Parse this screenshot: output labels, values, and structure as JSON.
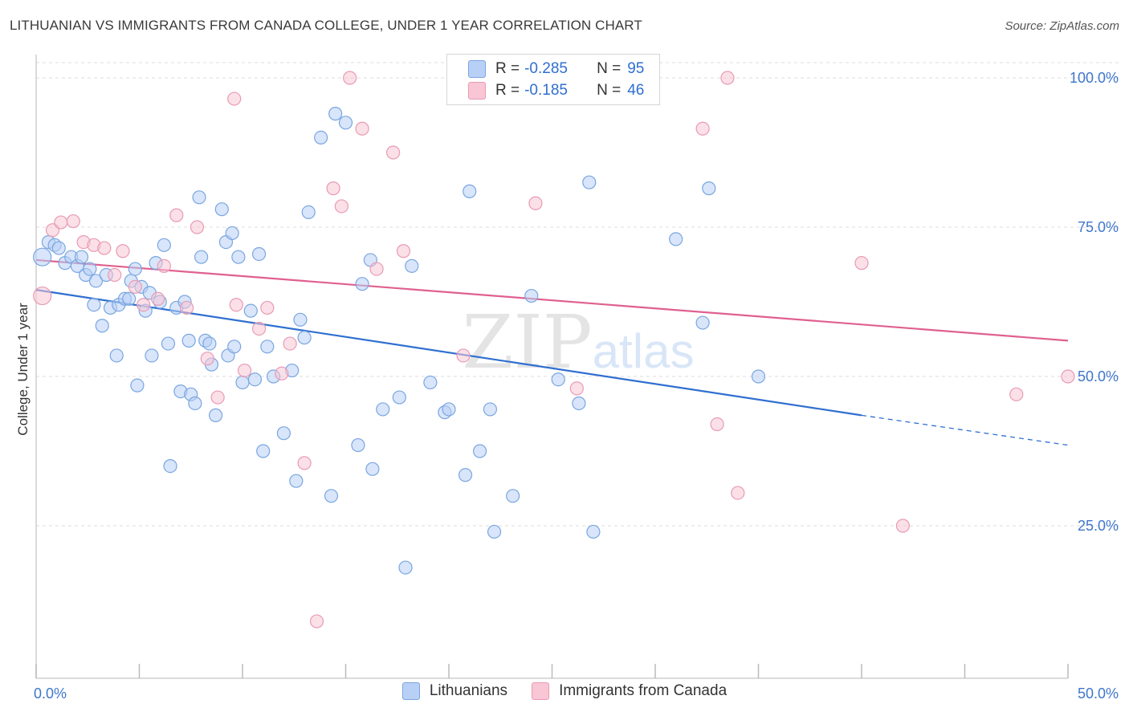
{
  "header": {
    "title": "LITHUANIAN VS IMMIGRANTS FROM CANADA COLLEGE, UNDER 1 YEAR CORRELATION CHART",
    "source": "Source: ZipAtlas.com"
  },
  "legend_top": [
    {
      "r_label": "R =",
      "r_value": "-0.285",
      "n_label": "N =",
      "n_value": "95"
    },
    {
      "r_label": "R =",
      "r_value": "-0.185",
      "n_label": "N =",
      "n_value": "46"
    }
  ],
  "legend_bottom": [
    {
      "label": "Lithuanians"
    },
    {
      "label": "Immigrants from Canada"
    }
  ],
  "colors": {
    "blue_fill": "#b8d0f5",
    "blue_stroke": "#7aa6e0",
    "blue_line": "#2f6fd0",
    "pink_fill": "#f8c6d5",
    "pink_stroke": "#e89bb4",
    "pink_line": "#e0608f",
    "axis_text": "#3f76cc",
    "grid": "#dddddd"
  },
  "chart_data": {
    "type": "scatter",
    "title": "LITHUANIAN VS IMMIGRANTS FROM CANADA COLLEGE, UNDER 1 YEAR CORRELATION CHART",
    "xlabel": "",
    "ylabel": "College, Under 1 year",
    "xlim": [
      0,
      50
    ],
    "ylim": [
      0,
      105
    ],
    "x_tick_labels": [
      "0.0%",
      "50.0%"
    ],
    "y_ticks": [
      25,
      50,
      75,
      100
    ],
    "y_tick_labels": [
      "25.0%",
      "50.0%",
      "75.0%",
      "100.0%"
    ],
    "grid": true,
    "watermark": "ZIPatlas",
    "series": [
      {
        "name": "Lithuanians",
        "color": "#b8d0f5",
        "trend": {
          "x": [
            0,
            40
          ],
          "y": [
            64.5,
            43.5
          ],
          "dash_to": [
            50,
            38.5
          ]
        },
        "points": [
          [
            0.3,
            70
          ],
          [
            0.6,
            72.5
          ],
          [
            0.9,
            72
          ],
          [
            1.1,
            71.5
          ],
          [
            1.4,
            69
          ],
          [
            1.7,
            70
          ],
          [
            2.0,
            68.5
          ],
          [
            2.2,
            70
          ],
          [
            2.4,
            67
          ],
          [
            2.6,
            68
          ],
          [
            2.9,
            66
          ],
          [
            2.8,
            62
          ],
          [
            3.2,
            58.5
          ],
          [
            3.4,
            67
          ],
          [
            3.6,
            61.5
          ],
          [
            3.9,
            53.5
          ],
          [
            4.0,
            62
          ],
          [
            4.3,
            63
          ],
          [
            4.5,
            63
          ],
          [
            4.6,
            66
          ],
          [
            4.8,
            68
          ],
          [
            4.9,
            48.5
          ],
          [
            5.1,
            65
          ],
          [
            5.3,
            61
          ],
          [
            5.5,
            64
          ],
          [
            5.6,
            53.5
          ],
          [
            5.8,
            69
          ],
          [
            6.0,
            62.5
          ],
          [
            6.2,
            72
          ],
          [
            6.4,
            55.5
          ],
          [
            6.5,
            35
          ],
          [
            6.8,
            61.5
          ],
          [
            7.0,
            47.5
          ],
          [
            7.2,
            62.5
          ],
          [
            7.4,
            56
          ],
          [
            7.5,
            47
          ],
          [
            7.7,
            45.5
          ],
          [
            7.9,
            80
          ],
          [
            8.0,
            70
          ],
          [
            8.2,
            56
          ],
          [
            8.4,
            55.5
          ],
          [
            8.5,
            52
          ],
          [
            8.7,
            43.5
          ],
          [
            9.0,
            78
          ],
          [
            9.2,
            72.5
          ],
          [
            9.3,
            53.5
          ],
          [
            9.5,
            74
          ],
          [
            9.8,
            70
          ],
          [
            9.6,
            55
          ],
          [
            10.0,
            49
          ],
          [
            10.4,
            61
          ],
          [
            10.8,
            70.5
          ],
          [
            10.6,
            49.5
          ],
          [
            11.0,
            37.5
          ],
          [
            11.2,
            55
          ],
          [
            11.5,
            50
          ],
          [
            12.0,
            40.5
          ],
          [
            12.4,
            51
          ],
          [
            12.6,
            32.5
          ],
          [
            12.8,
            59.5
          ],
          [
            13.0,
            56.5
          ],
          [
            13.2,
            77.5
          ],
          [
            13.8,
            90
          ],
          [
            14.5,
            94
          ],
          [
            15.0,
            92.5
          ],
          [
            14.3,
            30
          ],
          [
            15.6,
            38.5
          ],
          [
            15.8,
            65.5
          ],
          [
            16.2,
            69.5
          ],
          [
            16.3,
            34.5
          ],
          [
            16.8,
            44.5
          ],
          [
            17.6,
            46.5
          ],
          [
            17.9,
            18
          ],
          [
            18.2,
            68.5
          ],
          [
            19.1,
            49
          ],
          [
            19.8,
            44
          ],
          [
            20.0,
            44.5
          ],
          [
            20.8,
            33.5
          ],
          [
            21.0,
            81
          ],
          [
            21.5,
            37.5
          ],
          [
            22.0,
            44.5
          ],
          [
            22.2,
            24
          ],
          [
            23.1,
            30
          ],
          [
            24.0,
            63.5
          ],
          [
            25.3,
            49.5
          ],
          [
            26.3,
            45.5
          ],
          [
            26.8,
            82.5
          ],
          [
            27.0,
            24
          ],
          [
            31.0,
            73
          ],
          [
            32.3,
            59
          ],
          [
            32.6,
            81.5
          ],
          [
            35.0,
            50
          ]
        ]
      },
      {
        "name": "Immigrants from Canada",
        "color": "#f8c6d5",
        "trend": {
          "x": [
            0,
            50
          ],
          "y": [
            69.5,
            56
          ]
        },
        "points": [
          [
            0.3,
            63.5
          ],
          [
            0.8,
            74.5
          ],
          [
            1.2,
            75.8
          ],
          [
            1.8,
            76
          ],
          [
            2.3,
            72.5
          ],
          [
            2.8,
            72
          ],
          [
            3.3,
            71.5
          ],
          [
            3.8,
            67
          ],
          [
            4.2,
            71
          ],
          [
            4.8,
            65
          ],
          [
            5.2,
            62
          ],
          [
            5.9,
            63
          ],
          [
            6.2,
            68.5
          ],
          [
            6.8,
            77
          ],
          [
            7.3,
            61.5
          ],
          [
            7.8,
            75
          ],
          [
            8.3,
            53
          ],
          [
            8.8,
            46.5
          ],
          [
            9.6,
            96.5
          ],
          [
            9.7,
            62
          ],
          [
            10.1,
            51
          ],
          [
            10.8,
            58
          ],
          [
            11.2,
            61.5
          ],
          [
            11.9,
            50.5
          ],
          [
            12.3,
            55.5
          ],
          [
            13.0,
            35.5
          ],
          [
            13.6,
            9
          ],
          [
            14.4,
            81.5
          ],
          [
            14.8,
            78.5
          ],
          [
            15.2,
            100
          ],
          [
            15.8,
            91.5
          ],
          [
            16.5,
            68
          ],
          [
            17.3,
            87.5
          ],
          [
            17.8,
            71
          ],
          [
            20.7,
            53.5
          ],
          [
            24.2,
            79
          ],
          [
            26.2,
            48
          ],
          [
            32.3,
            91.5
          ],
          [
            33.0,
            42
          ],
          [
            33.5,
            100
          ],
          [
            34.0,
            30.5
          ],
          [
            40.0,
            69
          ],
          [
            42.0,
            25
          ],
          [
            47.5,
            47
          ],
          [
            50.0,
            50
          ]
        ]
      }
    ]
  }
}
